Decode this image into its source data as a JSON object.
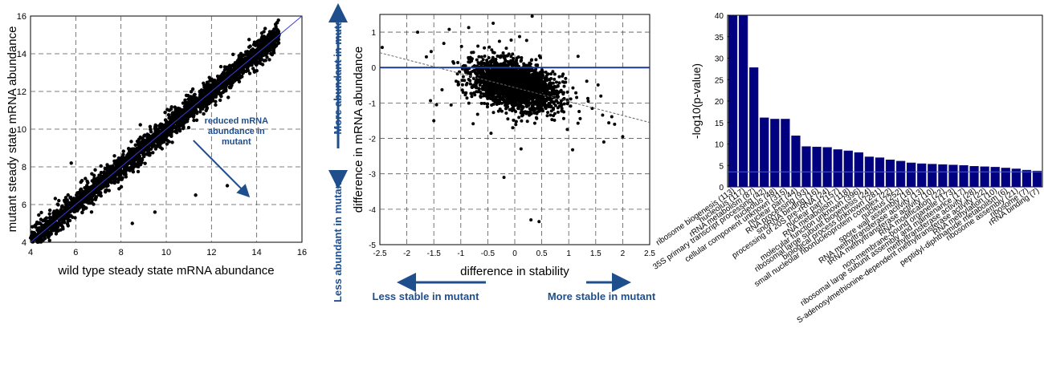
{
  "colors": {
    "points": "#000000",
    "accent": "#1f4e8c",
    "bars": "#000080",
    "bar_edge": "#1a1a6e",
    "grid": "#555555"
  },
  "chart_data": [
    {
      "type": "scatter",
      "title": "",
      "xlabel": "wild type steady state mRNA abundance",
      "ylabel": "mutant steady state mRNA abundance",
      "xlim": [
        4,
        16
      ],
      "ylim": [
        4,
        16
      ],
      "xticks": [
        4,
        6,
        8,
        10,
        12,
        14,
        16
      ],
      "yticks": [
        4,
        6,
        8,
        10,
        12,
        14,
        16
      ],
      "grid": true,
      "reference_line": {
        "from": [
          4,
          4
        ],
        "to": [
          16,
          16
        ]
      },
      "annotation": {
        "text_lines": [
          "reduced mRNA",
          "abundance in",
          "mutant"
        ],
        "arrow_from": [
          11.2,
          9.4
        ],
        "arrow_to": [
          13.6,
          6.5
        ]
      },
      "point_cloud": {
        "center_line": "y = x",
        "x_range": [
          4,
          15
        ],
        "spread": 0.3,
        "sample_points": [
          [
            9.5,
            5.6
          ],
          [
            11.3,
            6.5
          ],
          [
            5.8,
            8.2
          ],
          [
            8.5,
            5.0
          ],
          [
            12.7,
            7.0
          ]
        ]
      }
    },
    {
      "type": "scatter",
      "title": "",
      "xlabel": "difference in stability",
      "ylabel": "difference in mRNA abundance",
      "xlim": [
        -2.5,
        2.5
      ],
      "ylim": [
        -5,
        1.5
      ],
      "xticks": [
        -2.5,
        -2,
        -1.5,
        -1,
        -0.5,
        0,
        0.5,
        1,
        1.5,
        2,
        2.5
      ],
      "yticks": [
        -5,
        -4,
        -3,
        -2,
        -1,
        0,
        1
      ],
      "grid": true,
      "hline": 0,
      "fit_line": {
        "from": [
          -2.5,
          0.42
        ],
        "to": [
          2.5,
          -1.55
        ]
      },
      "side_labels": {
        "top": "More abundant in mutant",
        "bottom": "Less abundant in mutant",
        "left": "Less stable in mutant",
        "right": "More stable in mutant"
      },
      "point_cloud": {
        "center": [
          0.0,
          -0.5
        ],
        "sample_points": [
          [
            -1.8,
            1.0
          ],
          [
            -0.4,
            1.25
          ],
          [
            0.3,
            -4.3
          ],
          [
            0.45,
            -4.35
          ],
          [
            -0.2,
            -3.1
          ],
          [
            1.65,
            -2.1
          ],
          [
            2.0,
            -1.95
          ],
          [
            1.85,
            -1.6
          ],
          [
            -1.45,
            -1.05
          ],
          [
            -1.5,
            -1.5
          ]
        ]
      }
    },
    {
      "type": "bar",
      "title": "",
      "ylabel": "-log10(p-value)",
      "ylim": [
        0,
        40
      ],
      "yticks": [
        0,
        5,
        10,
        15,
        20,
        25,
        30,
        35,
        40
      ],
      "threshold_line": 3.5,
      "categories": [
        "ribosome biogenesis (113)",
        "nucleolus (117)",
        "rRNA metabolism (87)",
        "35S primary transcript processing (42)",
        "nucleolus (48)",
        "cellular component unknown (315)",
        "nuclear part (44)",
        "RNA processing (93)",
        "snoRNA binding (16)",
        "processing of 20S pre-rRNA (24)",
        "nuclear part (157)",
        "RNA metabolism (118)",
        "molecular function unknown (396)",
        "ribosomal large subunit biogenesis (24)",
        "biological process unknown (281)",
        "small nucleolar ribonucleoprotein complex (22)",
        "nucleus (252)",
        "spore wall assembly (18)",
        "RNA methyltransferase activity (13)",
        "tRNA methyltransferase activity (10)",
        "RNA modification (22)",
        "non-membrane-bound organelle (173)",
        "ribosomal large subunit assembly and maintenance (17)",
        "methyltransferase activity (28)",
        "S-adenosylmethionine-dependent methyltransferase activity (22)",
        "RNA methylation (10)",
        "peptidyl-diphthamide metabolism (6)",
        "ribosome assembly (21)",
        "ribosome (7)",
        "rRNA binding (7)"
      ],
      "values": [
        40,
        40,
        27.8,
        16.1,
        15.8,
        15.8,
        11.9,
        9.4,
        9.3,
        9.2,
        8.7,
        8.4,
        8.0,
        7.0,
        6.8,
        6.3,
        6.0,
        5.6,
        5.4,
        5.3,
        5.2,
        5.1,
        5.0,
        4.8,
        4.7,
        4.6,
        4.4,
        4.2,
        3.9,
        3.7
      ]
    }
  ]
}
